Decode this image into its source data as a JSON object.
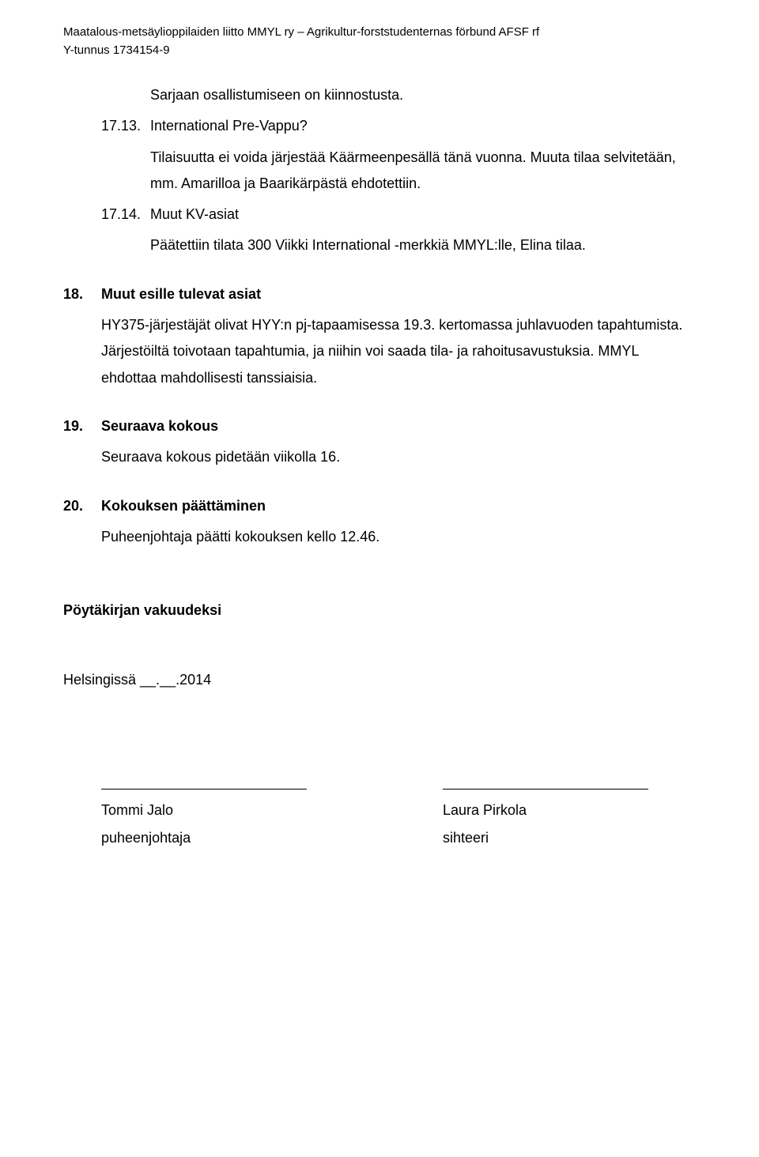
{
  "header": {
    "line1": "Maatalous-metsäylioppilaiden liitto MMYL ry – Agrikultur-forststudenternas förbund AFSF rf",
    "line2": "Y-tunnus 1734154-9"
  },
  "body": {
    "intro_indent": "Sarjaan osallistumiseen on kiinnostusta.",
    "item_17_13": {
      "num": "17.13.",
      "title": "International Pre-Vappu?",
      "body": "Tilaisuutta ei voida järjestää Käärmeenpesällä tänä vuonna. Muuta tilaa selvitetään, mm. Amarilloa ja Baarikärpästä ehdotettiin."
    },
    "item_17_14": {
      "num": "17.14.",
      "title": "Muut KV-asiat",
      "body": "Päätettiin tilata 300 Viikki International -merkkiä MMYL:lle, Elina tilaa."
    },
    "sec18": {
      "num": "18.",
      "title": "Muut esille tulevat asiat",
      "body": "HY375-järjestäjät olivat HYY:n pj-tapaamisessa 19.3. kertomassa juhlavuoden tapahtumista. Järjestöiltä toivotaan tapahtumia, ja niihin voi saada tila- ja rahoitusavustuksia. MMYL ehdottaa mahdollisesti tanssiaisia."
    },
    "sec19": {
      "num": "19.",
      "title": "Seuraava kokous",
      "body": "Seuraava kokous pidetään viikolla 16."
    },
    "sec20": {
      "num": "20.",
      "title": "Kokouksen päättäminen",
      "body": "Puheenjohtaja päätti kokouksen kello 12.46."
    },
    "vakuudeksi": "Pöytäkirjan vakuudeksi",
    "date_line": "Helsingissä __.__.2014",
    "sig": {
      "left_name": "Tommi Jalo",
      "left_role": "puheenjohtaja",
      "right_name": "Laura Pirkola",
      "right_role": "sihteeri"
    }
  },
  "style": {
    "background_color": "#ffffff",
    "text_color": "#000000",
    "body_fontsize": 18,
    "header_fontsize": 15,
    "font_family": "Arial"
  }
}
